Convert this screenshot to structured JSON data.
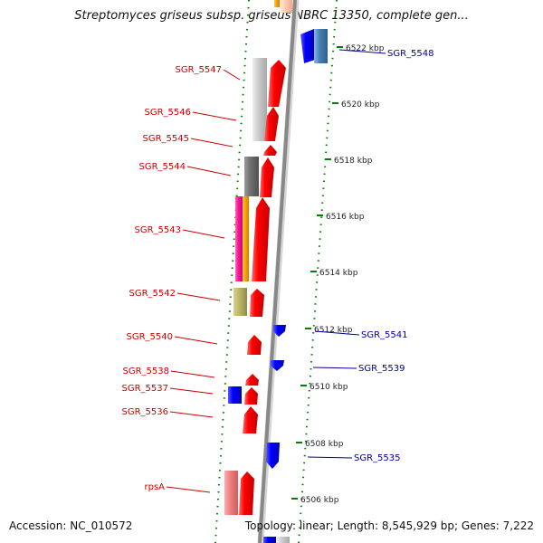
{
  "title": "Streptomyces griseus subsp. griseus NBRC 13350, complete gen...",
  "footer": {
    "accession": "Accession: NC_010572",
    "summary": "Topology: linear; Length: 8,545,929 bp; Genes: 7,222"
  },
  "colors": {
    "left_label": "#cc0000",
    "right_label": "#000099",
    "tick": "#008000",
    "backbone": "#888888"
  },
  "kbp_ticks": [
    {
      "label": "6522 kbp",
      "pos": 6522
    },
    {
      "label": "6520 kbp",
      "pos": 6520
    },
    {
      "label": "6518 kbp",
      "pos": 6518
    },
    {
      "label": "6516 kbp",
      "pos": 6516
    },
    {
      "label": "6514 kbp",
      "pos": 6514
    },
    {
      "label": "6512 kbp",
      "pos": 6512
    },
    {
      "label": "6510 kbp",
      "pos": 6510
    },
    {
      "label": "6508 kbp",
      "pos": 6508
    },
    {
      "label": "6506 kbp",
      "pos": 6506
    }
  ],
  "left_genes": [
    {
      "name": "SGR_5547"
    },
    {
      "name": "SGR_5546"
    },
    {
      "name": "SGR_5545"
    },
    {
      "name": "SGR_5544"
    },
    {
      "name": "SGR_5543"
    },
    {
      "name": "SGR_5542"
    },
    {
      "name": "SGR_5540"
    },
    {
      "name": "SGR_5538"
    },
    {
      "name": "SGR_5537"
    },
    {
      "name": "SGR_5536"
    },
    {
      "name": "rpsA"
    }
  ],
  "right_genes": [
    {
      "name": "SGR_5548"
    },
    {
      "name": "SGR_5541"
    },
    {
      "name": "SGR_5539"
    },
    {
      "name": "SGR_5535"
    }
  ]
}
